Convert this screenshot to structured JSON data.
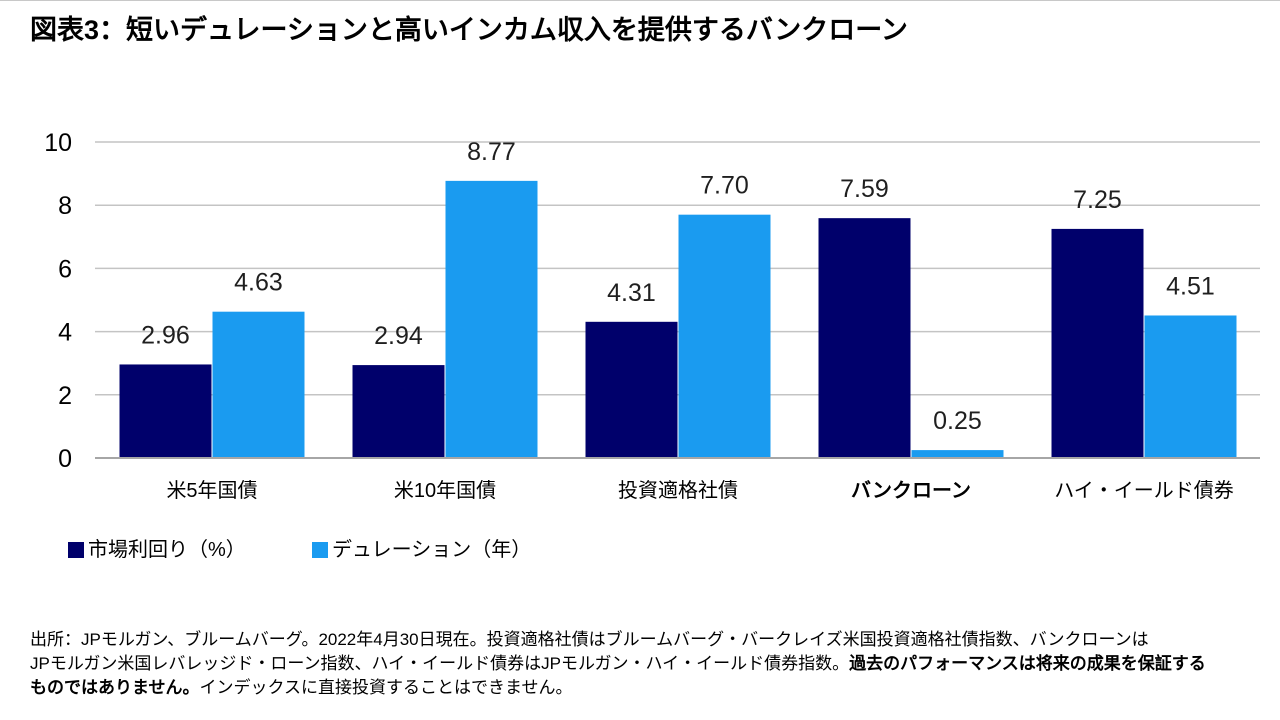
{
  "chart_data": {
    "type": "bar",
    "title": "図表3：短いデュレーションと高いインカム収入を提供するバンクローン",
    "xlabel": "",
    "ylabel": "",
    "categories": [
      "米5年国債",
      "米10年国債",
      "投資適格社債",
      "バンクローン",
      "ハイ・イールド債券"
    ],
    "series": [
      {
        "name": "市場利回り（%）",
        "color": "#00006B",
        "values": [
          2.96,
          2.94,
          4.31,
          7.59,
          7.25
        ],
        "data_labels": [
          "2.96",
          "2.94",
          "4.31",
          "7.59",
          "7.25"
        ]
      },
      {
        "name": "デュレーション（年）",
        "color": "#1A9BF0",
        "values": [
          4.63,
          8.77,
          7.7,
          0.25,
          4.51
        ],
        "data_labels": [
          "4.63",
          "8.77",
          "7.70",
          "0.25",
          "4.51"
        ]
      }
    ],
    "ylim": [
      0,
      10
    ],
    "yticks": [
      0,
      2,
      4,
      6,
      8,
      10
    ],
    "grid": "horizontal",
    "legend": "bottom-left",
    "emphasized_category": "バンクローン"
  },
  "footnote": {
    "line_1": "出所：JPモルガン、ブルームバーグ。2022年4月30日現在。投資適格社債はブルームバーグ・バークレイズ米国投資適格社債指数、バンクローンは",
    "line_2": "JPモルガン米国レバレッジド・ローン指数、ハイ・イールド債券はJPモルガン・ハイ・イールド債券指数。",
    "line_2_emphasis": "過去のパフォーマンスは将来の成果を保証する",
    "line_3_emphasis": "ものではありません。",
    "line_3": "インデックスに直接投資することはできません。"
  }
}
